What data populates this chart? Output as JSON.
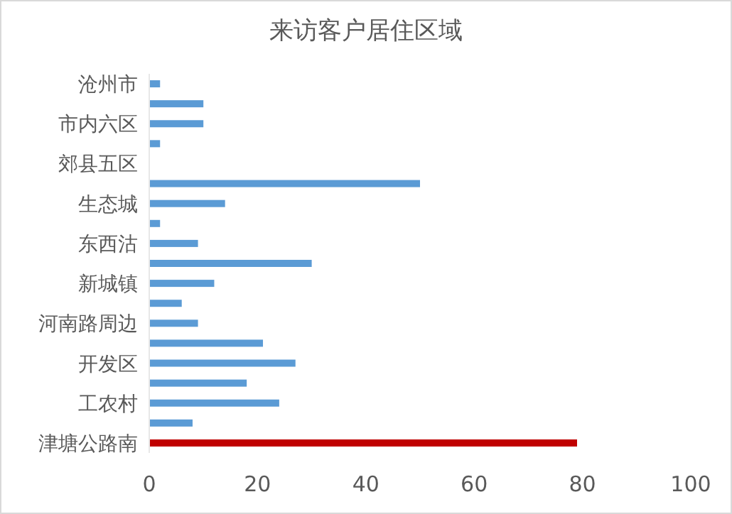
{
  "chart_data": {
    "type": "bar",
    "orientation": "horizontal",
    "title": "来访客户居住区域",
    "categories": [
      "沧州市",
      null,
      "市内六区",
      null,
      "郊县五区",
      null,
      "生态城",
      null,
      "东西沽",
      null,
      "新城镇",
      null,
      "河南路周边",
      null,
      "开发区",
      null,
      "工农村",
      null,
      "津塘公路南"
    ],
    "values": [
      2,
      10,
      10,
      2,
      0,
      50,
      14,
      2,
      9,
      30,
      12,
      6,
      9,
      21,
      27,
      18,
      24,
      8,
      79
    ],
    "colors": [
      "#5b9bd5",
      "#5b9bd5",
      "#5b9bd5",
      "#5b9bd5",
      "#5b9bd5",
      "#5b9bd5",
      "#5b9bd5",
      "#5b9bd5",
      "#5b9bd5",
      "#5b9bd5",
      "#5b9bd5",
      "#5b9bd5",
      "#5b9bd5",
      "#5b9bd5",
      "#5b9bd5",
      "#5b9bd5",
      "#5b9bd5",
      "#5b9bd5",
      "#c00000"
    ],
    "xlim": [
      0,
      100
    ],
    "xticks": [
      0,
      20,
      40,
      60,
      80,
      100
    ],
    "grid": false
  }
}
